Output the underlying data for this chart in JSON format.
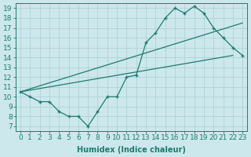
{
  "xlabel": "Humidex (Indice chaleur)",
  "bg_color": "#cce8ec",
  "line_color": "#1e7b6e",
  "xlim": [
    -0.5,
    23.5
  ],
  "ylim": [
    6.5,
    19.5
  ],
  "xticks": [
    0,
    1,
    2,
    3,
    4,
    5,
    6,
    7,
    8,
    9,
    10,
    11,
    12,
    13,
    14,
    15,
    16,
    17,
    18,
    19,
    20,
    21,
    22,
    23
  ],
  "yticks": [
    7,
    8,
    9,
    10,
    11,
    12,
    13,
    14,
    15,
    16,
    17,
    18,
    19
  ],
  "line1_x": [
    0,
    1,
    2,
    3,
    4,
    5,
    6,
    7,
    8,
    9,
    10,
    11,
    12,
    13,
    14,
    15,
    16,
    17,
    18,
    19,
    20,
    21,
    22,
    23
  ],
  "line1_y": [
    10.5,
    10.0,
    9.5,
    9.5,
    8.5,
    8.0,
    8.0,
    7.0,
    8.5,
    10.0,
    10.0,
    12.0,
    12.2,
    15.5,
    16.5,
    18.0,
    19.0,
    18.5,
    19.2,
    18.5,
    17.0,
    16.0,
    15.0,
    14.2
  ],
  "line2_x": [
    0,
    23
  ],
  "line2_y": [
    10.5,
    17.5
  ],
  "line3_x": [
    0,
    22
  ],
  "line3_y": [
    10.5,
    14.2
  ],
  "marker": "+",
  "markersize": 3,
  "linewidth": 0.9,
  "grid_color": "#aacdd4",
  "xlabel_fontsize": 7,
  "tick_fontsize": 6.5
}
